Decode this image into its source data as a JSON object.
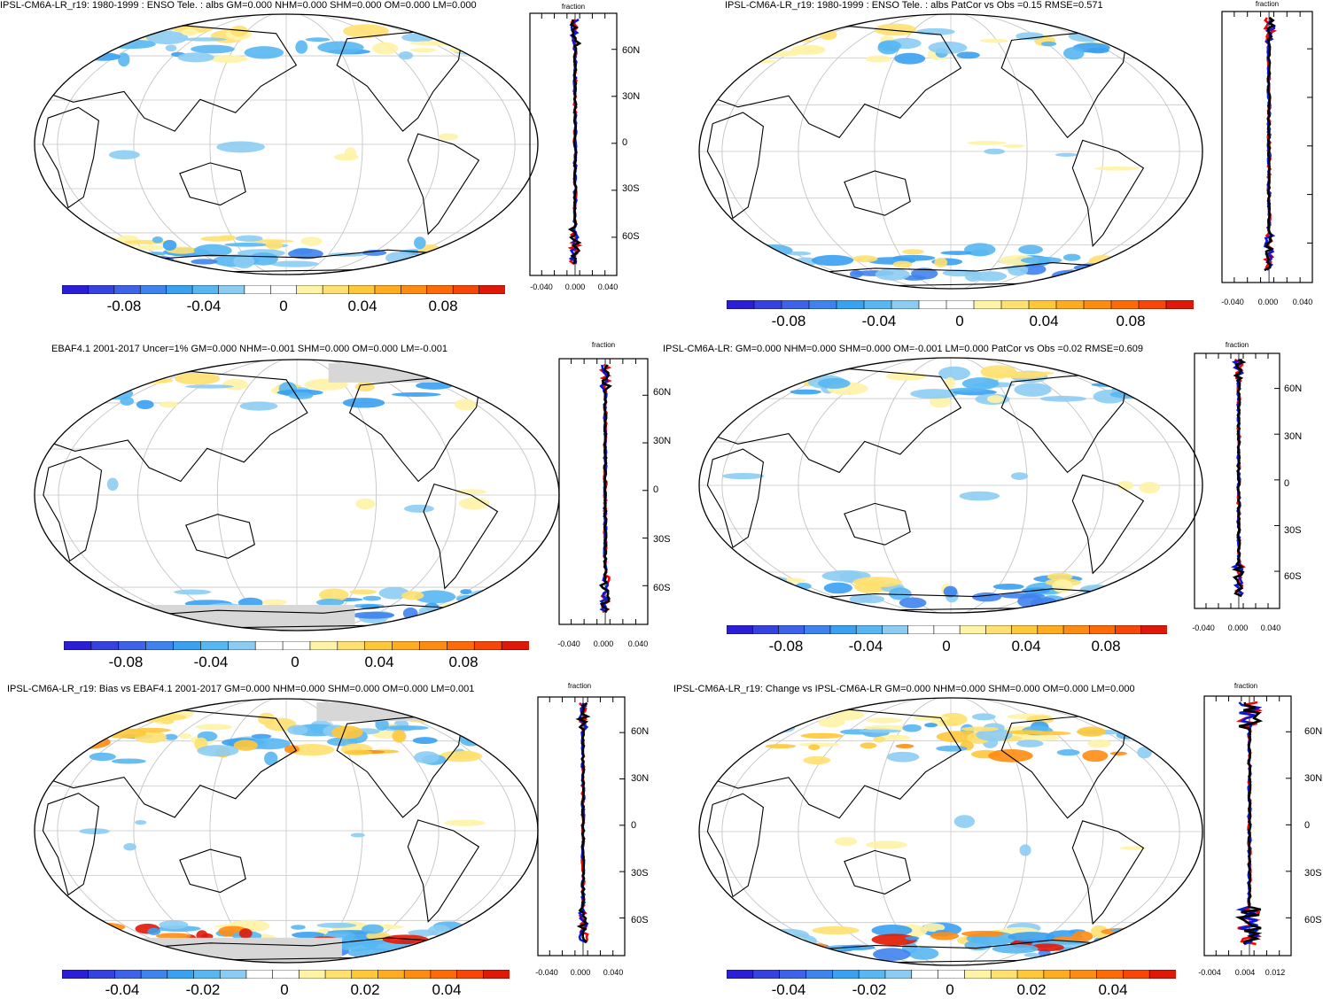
{
  "colors": {
    "scale": [
      "#2a1fd6",
      "#3542e0",
      "#3e63e8",
      "#3f83ee",
      "#3aa0f0",
      "#58b7f2",
      "#8cccf2",
      "#ffffff",
      "#ffffff",
      "#fff3a6",
      "#ffe070",
      "#ffc83a",
      "#ffac22",
      "#ff8c12",
      "#ff6a08",
      "#f74608",
      "#e01808"
    ],
    "land_missing": "#d7d7d7",
    "model_line": "#ff0000",
    "obs_line": "#0a18d8",
    "bias_line": "#000000"
  },
  "panels": [
    {
      "title": "IPSL-CM6A-LR_r19: 1980-1999 : ENSO Tele. : albs GM=0.000 NHM=0.000 SHM=0.000 OM=0.000 LM=0.000",
      "cbar_labels": [
        "-0.08",
        "-0.04",
        "0",
        "0.04",
        "0.08"
      ],
      "zonal_unit": "fraction",
      "lat_labels": [
        "60N",
        "30N",
        "0",
        "30S",
        "60S"
      ],
      "x_ticks": [
        "-0.040",
        "0.000",
        "0.040"
      ]
    },
    {
      "title": "IPSL-CM6A-LR_r19: 1980-1999 : ENSO Tele. : albs PatCor vs Obs =0.15 RMSE=0.571",
      "cbar_labels": [
        "-0.08",
        "-0.04",
        "0",
        "0.04",
        "0.08"
      ],
      "zonal_unit": "fraction",
      "lat_labels": [
        "",
        "",
        "",
        "",
        ""
      ],
      "x_ticks": [
        "-0.040",
        "0.000",
        "0.040"
      ]
    },
    {
      "title": "EBAF4.1 2001-2017 Uncer=1% GM=0.000 NHM=-0.001 SHM=0.000 OM=0.000 LM=-0.001",
      "cbar_labels": [
        "-0.08",
        "-0.04",
        "0",
        "0.04",
        "0.08"
      ],
      "zonal_unit": "fraction",
      "lat_labels": [
        "60N",
        "30N",
        "0",
        "30S",
        "60S"
      ],
      "x_ticks": [
        "-0.040",
        "0.000",
        "0.040"
      ]
    },
    {
      "title": "IPSL-CM6A-LR: GM=0.000 NHM=0.000 SHM=0.000 OM=-0.001 LM=0.000 PatCor vs Obs =0.02 RMSE=0.609",
      "cbar_labels": [
        "-0.08",
        "-0.04",
        "0",
        "0.04",
        "0.08"
      ],
      "zonal_unit": "fraction",
      "lat_labels": [
        "60N",
        "30N",
        "0",
        "30S",
        "60S"
      ],
      "x_ticks": [
        "-0.040",
        "0.000",
        "0.040"
      ]
    },
    {
      "title": "IPSL-CM6A-LR_r19: Bias vs EBAF4.1 2001-2017 GM=0.000 NHM=0.000 SHM=0.000 OM=0.000 LM=0.001",
      "cbar_labels": [
        "-0.04",
        "-0.02",
        "0",
        "0.02",
        "0.04"
      ],
      "zonal_unit": "fraction",
      "lat_labels": [
        "60N",
        "30N",
        "0",
        "30S",
        "60S"
      ],
      "x_ticks": [
        "-0.040",
        "0.000",
        "0.040"
      ]
    },
    {
      "title": "IPSL-CM6A-LR_r19: Change vs IPSL-CM6A-LR GM=0.000 NHM=0.000 SHM=0.000 OM=0.000 LM=0.000",
      "cbar_labels": [
        "-0.04",
        "-0.02",
        "0",
        "0.02",
        "0.04"
      ],
      "zonal_unit": "fraction",
      "lat_labels": [
        "60N",
        "30N",
        "0",
        "30S",
        "60S"
      ],
      "x_ticks": [
        "-0.004",
        "0.004",
        "0.012"
      ]
    }
  ]
}
